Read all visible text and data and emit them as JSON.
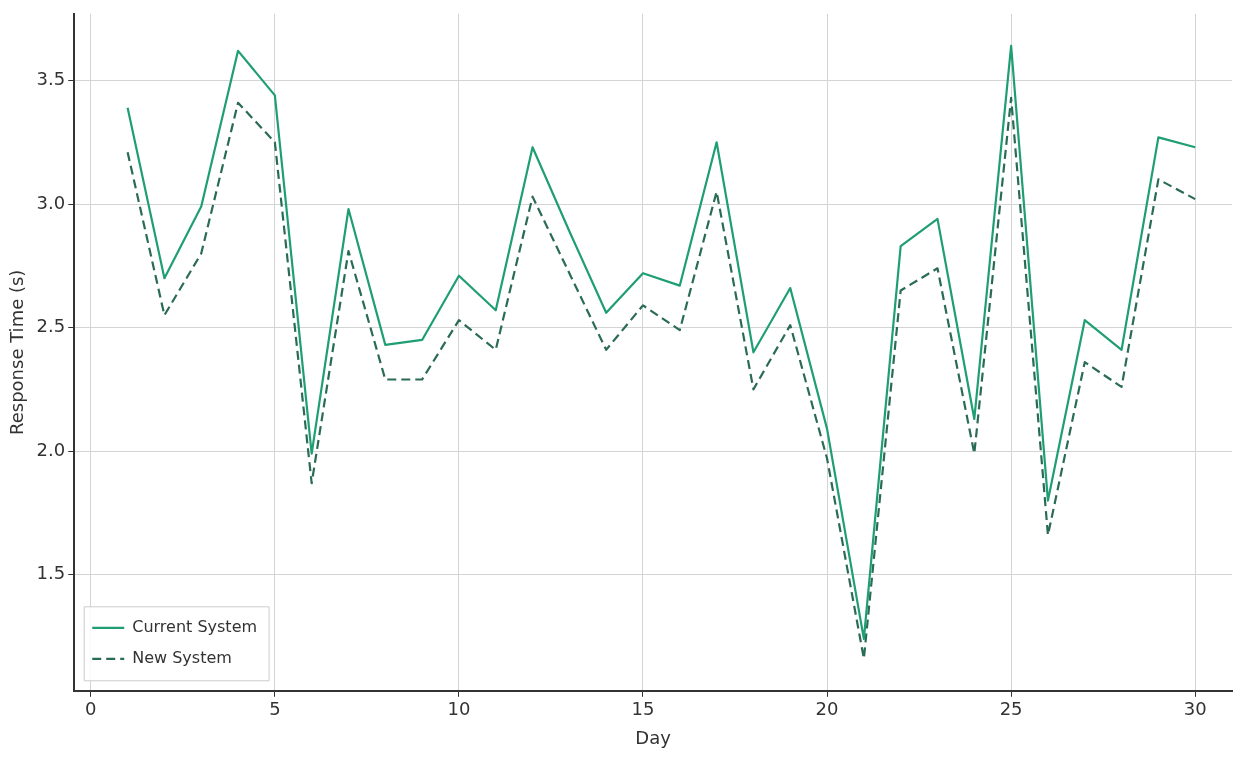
{
  "chart_data": {
    "type": "line",
    "xlabel": "Day",
    "ylabel": "Response Time (s)",
    "x": [
      1,
      2,
      3,
      4,
      5,
      6,
      7,
      8,
      9,
      10,
      11,
      12,
      13,
      14,
      15,
      16,
      17,
      18,
      19,
      20,
      21,
      22,
      23,
      24,
      25,
      26,
      27,
      28,
      29,
      30
    ],
    "series": [
      {
        "name": "Current System",
        "color": "#1f9e74",
        "line_style": "solid",
        "values": [
          3.39,
          2.7,
          2.99,
          3.62,
          3.44,
          1.99,
          2.98,
          2.43,
          2.45,
          2.71,
          2.57,
          3.23,
          2.89,
          2.56,
          2.72,
          2.67,
          3.25,
          2.4,
          2.66,
          2.09,
          1.24,
          2.83,
          2.94,
          2.13,
          3.64,
          1.8,
          2.53,
          2.41,
          3.27,
          3.23
        ]
      },
      {
        "name": "New System",
        "color": "#2a6b55",
        "line_style": "dashed",
        "values": [
          3.21,
          2.55,
          2.8,
          3.41,
          3.25,
          1.87,
          2.81,
          2.29,
          2.29,
          2.53,
          2.41,
          3.03,
          2.72,
          2.41,
          2.59,
          2.49,
          3.05,
          2.25,
          2.51,
          1.97,
          1.16,
          2.65,
          2.74,
          1.99,
          3.43,
          1.66,
          2.36,
          2.26,
          3.1,
          3.02
        ]
      }
    ],
    "xlim": [
      -0.45,
      31
    ],
    "xticks": [
      0,
      5,
      10,
      15,
      20,
      25,
      30
    ],
    "ylim": [
      1.03,
      3.77
    ],
    "yticks": [
      1.5,
      {
        "value": 2,
        "label": "2.0"
      },
      2.5,
      {
        "value": 3,
        "label": "3.0"
      },
      3.5
    ],
    "grid": true,
    "legend": "bottom left",
    "marker": "none"
  }
}
